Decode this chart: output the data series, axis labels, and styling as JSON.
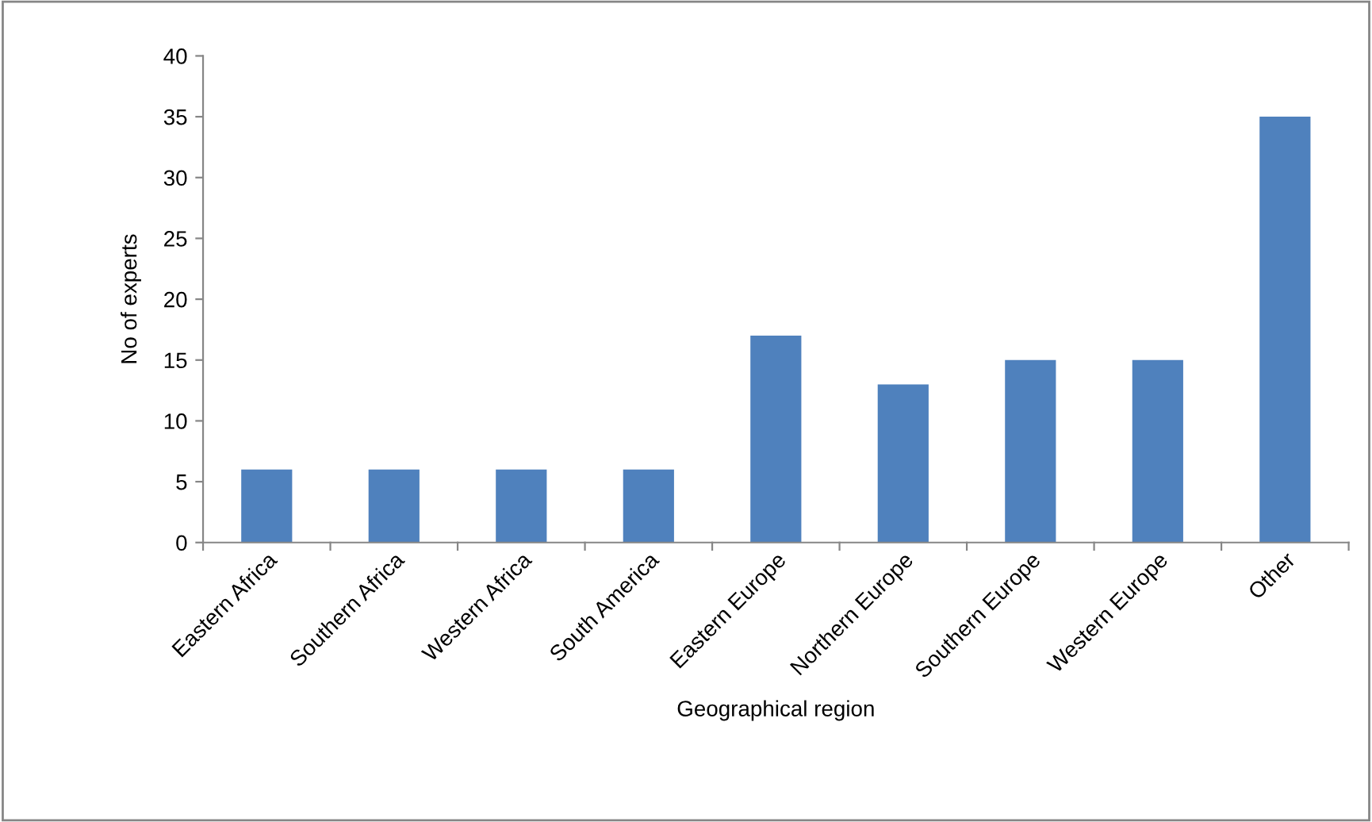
{
  "chart_data": {
    "type": "bar",
    "xlabel": "Geographical region",
    "ylabel": "No of experts",
    "categories": [
      "Eastern Africa",
      "Southern Africa",
      "Western Africa",
      "South America",
      "Eastern Europe",
      "Northern Europe",
      "Southern Europe",
      "Western Europe",
      "Other"
    ],
    "values": [
      6,
      6,
      6,
      6,
      17,
      13,
      15,
      15,
      35
    ],
    "color": "#4f81bd",
    "ylim": [
      0,
      40
    ],
    "yticks": [
      0,
      5,
      10,
      15,
      20,
      25,
      30,
      35,
      40
    ],
    "grid": false,
    "legend": false
  }
}
